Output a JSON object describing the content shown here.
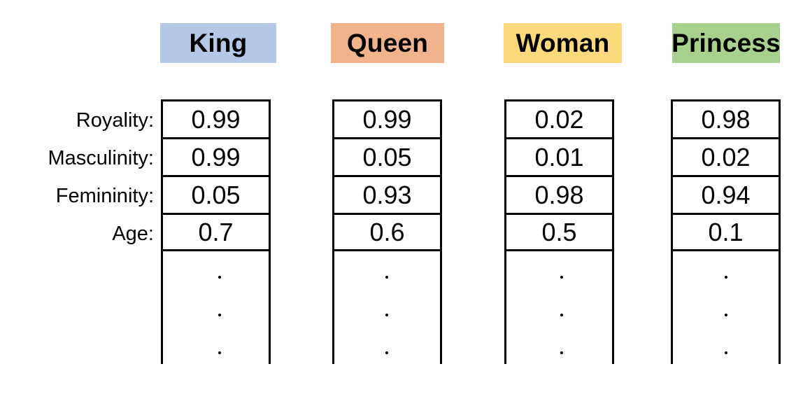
{
  "row_labels": [
    "Royality:",
    "Masculinity:",
    "Femininity:",
    "Age:"
  ],
  "columns": [
    {
      "header": "King",
      "color": "#b4c7e7",
      "values": [
        "0.99",
        "0.99",
        "0.05",
        "0.7"
      ]
    },
    {
      "header": "Queen",
      "color": "#f0b38b",
      "values": [
        "0.99",
        "0.05",
        "0.93",
        "0.6"
      ]
    },
    {
      "header": "Woman",
      "color": "#fbd97d",
      "values": [
        "0.02",
        "0.01",
        "0.98",
        "0.5"
      ]
    },
    {
      "header": "Princess",
      "color": "#a9d18e",
      "values": [
        "0.98",
        "0.02",
        "0.94",
        "0.1"
      ]
    }
  ],
  "ellipsis": [
    ".",
    ".",
    "."
  ]
}
